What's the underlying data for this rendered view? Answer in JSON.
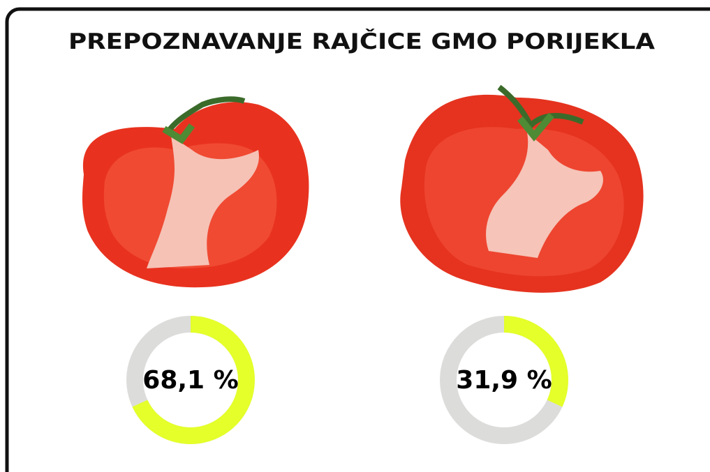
{
  "title": "PREPOZNAVANJE RAJČICE GMO PORIJEKLA",
  "chart_data": [
    {
      "type": "donut",
      "values": [
        68.1
      ],
      "value_labels": [
        "68,1 %"
      ],
      "color": "#e4ff2a",
      "track_color": "#dcdddb"
    },
    {
      "type": "donut",
      "values": [
        31.9
      ],
      "value_labels": [
        "31,9 %"
      ],
      "color": "#e4ff2a",
      "track_color": "#dcdddb"
    }
  ]
}
